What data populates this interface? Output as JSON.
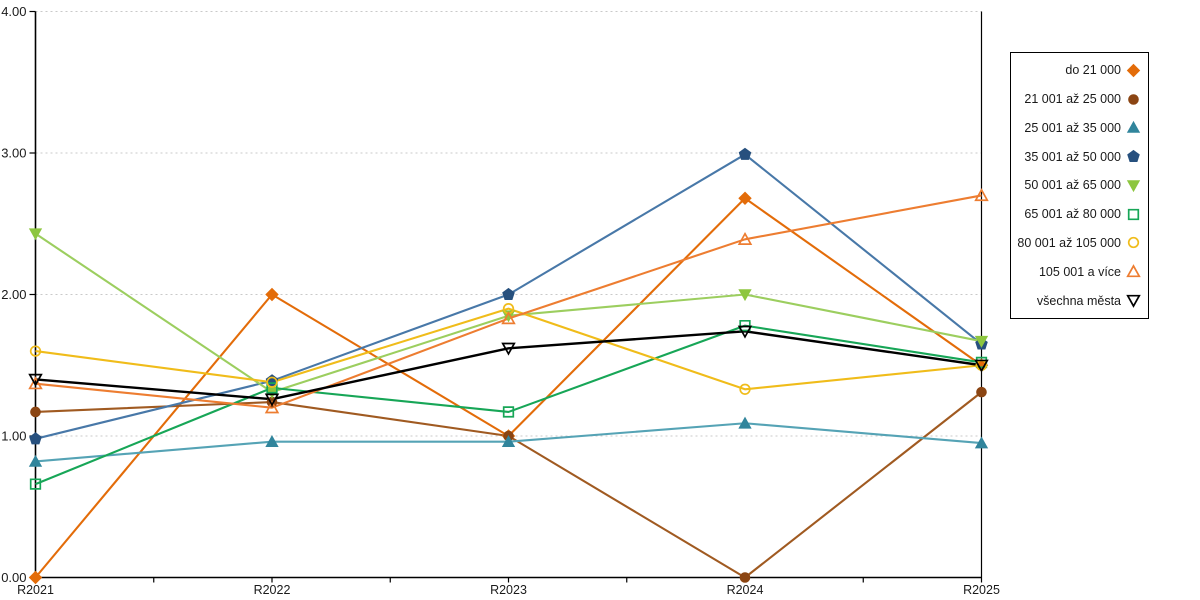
{
  "chart_data": {
    "type": "line",
    "title": "",
    "xlabel": "",
    "ylabel": "",
    "categories": [
      "R2021",
      "R2022",
      "R2023",
      "R2024",
      "R2025"
    ],
    "y_ticks": [
      "0.00",
      "1.00",
      "2.00",
      "3.00",
      "4.00"
    ],
    "ylim": [
      0,
      4
    ],
    "grid": "horizontal-dashed",
    "grid_color": "#c9c9c9",
    "axis_color": "#000000",
    "legend_position": "right-outside",
    "series": [
      {
        "name": "do 21 000",
        "marker": "diamond",
        "filled": true,
        "color": "#E36C09",
        "marker_color": "#E36C09",
        "values": [
          0.0,
          2.0,
          1.0,
          2.68,
          1.5
        ]
      },
      {
        "name": "21 001 až 25 000",
        "marker": "circle",
        "filled": true,
        "color": "#A05A21",
        "marker_color": "#8B4513",
        "values": [
          1.17,
          1.24,
          1.0,
          0.0,
          1.31
        ]
      },
      {
        "name": "25 001 až 35 000",
        "marker": "triangle-up",
        "filled": true,
        "color": "#55A3B5",
        "marker_color": "#31859C",
        "values": [
          0.82,
          0.96,
          0.96,
          1.09,
          0.95
        ]
      },
      {
        "name": "35 001 až 50 000",
        "marker": "pentagon",
        "filled": true,
        "color": "#4878A8",
        "marker_color": "#27507E",
        "values": [
          0.98,
          1.39,
          2.0,
          2.99,
          1.65
        ]
      },
      {
        "name": "50 001 až 65 000",
        "marker": "triangle-down",
        "filled": true,
        "color": "#9CCE5F",
        "marker_color": "#8DC63F",
        "values": [
          2.43,
          1.31,
          1.85,
          2.0,
          1.67
        ]
      },
      {
        "name": "65 001 až 80 000",
        "marker": "square",
        "filled": false,
        "color": "#17A657",
        "marker_color": "#17A657",
        "values": [
          0.66,
          1.34,
          1.17,
          1.78,
          1.52
        ]
      },
      {
        "name": "80 001 až 105 000",
        "marker": "circle",
        "filled": false,
        "color": "#F0BC1A",
        "marker_color": "#F0BC1A",
        "values": [
          1.6,
          1.38,
          1.9,
          1.33,
          1.5
        ]
      },
      {
        "name": "105 001 a více",
        "marker": "triangle-up",
        "filled": false,
        "color": "#ED7D31",
        "marker_color": "#ED7D31",
        "values": [
          1.37,
          1.2,
          1.83,
          2.39,
          2.7
        ]
      },
      {
        "name": "všechna města",
        "marker": "triangle-down",
        "filled": false,
        "color": "#000000",
        "marker_color": "#000000",
        "values": [
          1.4,
          1.26,
          1.62,
          1.74,
          1.5
        ]
      }
    ]
  }
}
